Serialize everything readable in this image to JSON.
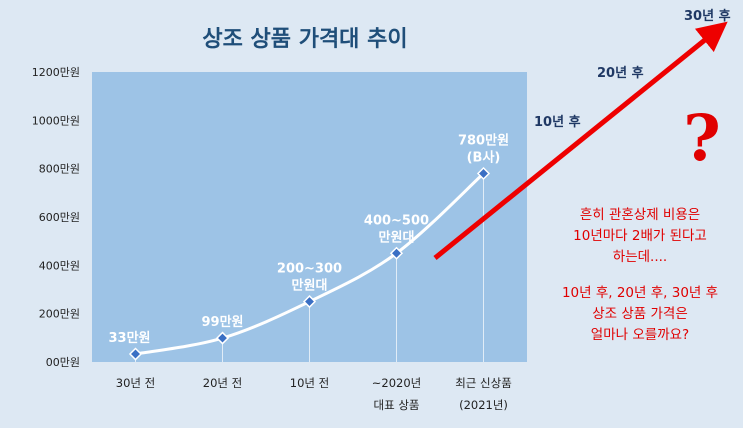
{
  "chart_data": {
    "type": "line",
    "title": "상조 상품 가격대 추이",
    "categories": [
      [
        "30년 전"
      ],
      [
        "20년 전"
      ],
      [
        "10년 전"
      ],
      [
        "~2020년",
        "대표 상품"
      ],
      [
        "최근 신상품",
        "(2021년)"
      ]
    ],
    "values": [
      33,
      99,
      250,
      450,
      780
    ],
    "data_labels": [
      [
        "33만원"
      ],
      [
        "99만원"
      ],
      [
        "200~300",
        "만원대"
      ],
      [
        "400~500",
        "만원대"
      ],
      [
        "780만원",
        "(B사)"
      ]
    ],
    "y_ticks": [
      "00만원",
      "200만원",
      "400만원",
      "600만원",
      "800만원",
      "1000만원",
      "1200만원"
    ],
    "ylim": [
      0,
      1200
    ],
    "grid": false,
    "line_color": "#ffffff",
    "marker_color": "#3a6fc4",
    "plot_bg": "#9dc3e6"
  },
  "annotations": {
    "arrow_labels": [
      "10년 후",
      "20년 후",
      "30년 후"
    ],
    "question_mark": "?",
    "note_lines_1": [
      "흔히 관혼상제 비용은",
      "10년마다 2배가 된다고",
      "하는데...."
    ],
    "note_lines_2": [
      "10년 후, 20년 후, 30년 후",
      "상조 상품 가격은",
      "얼마나 오를까요?"
    ],
    "arrow_color": "#ee0000"
  }
}
